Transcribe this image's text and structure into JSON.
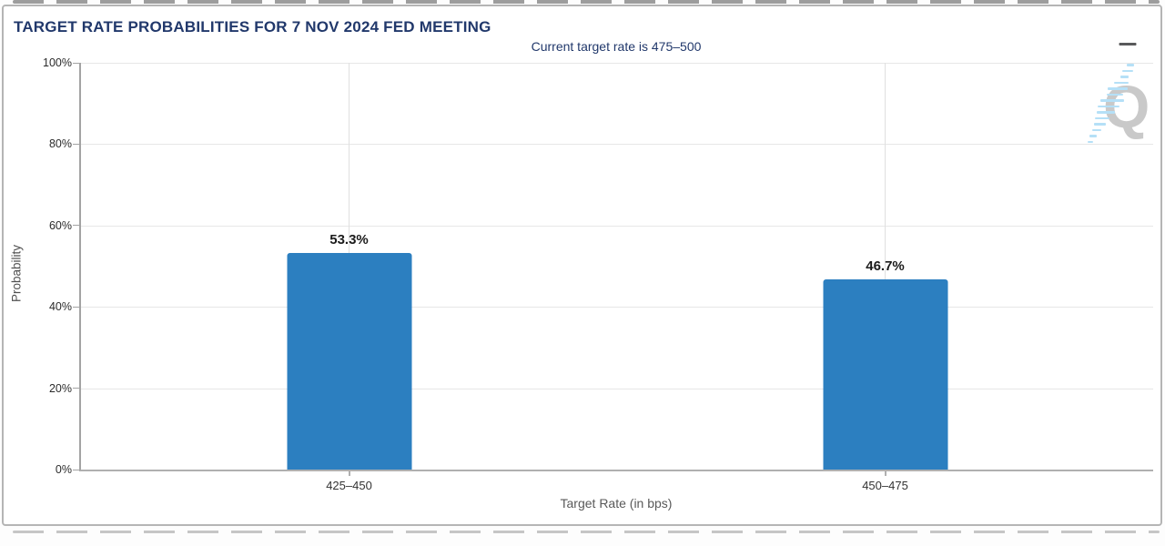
{
  "panel": {
    "title": "TARGET RATE PROBABILITIES FOR 7 NOV 2024 FED MEETING"
  },
  "chart_data": {
    "type": "bar",
    "title": "Current target rate is 475–500",
    "categories": [
      "425–450",
      "450–475"
    ],
    "values": [
      53.3,
      46.7
    ],
    "value_labels": [
      "53.3%",
      "46.7%"
    ],
    "xlabel": "Target Rate (in bps)",
    "ylabel": "Probability",
    "ylim": [
      0,
      100
    ],
    "ytick_labels": [
      "100%",
      "80%",
      "60%",
      "40%",
      "20%",
      "0%"
    ],
    "grid": true,
    "legend_position": "none",
    "bar_color": "#2c7fc0"
  },
  "watermark": {
    "letter": "Q"
  },
  "colors": {
    "title_navy": "#21386b",
    "bar_blue": "#2c7fc0",
    "axis_gray": "#a3a3a3",
    "grid_gray": "#e7e7e7",
    "watermark_gray": "#c9c9c9",
    "watermark_blue": "#b5e0f7"
  }
}
